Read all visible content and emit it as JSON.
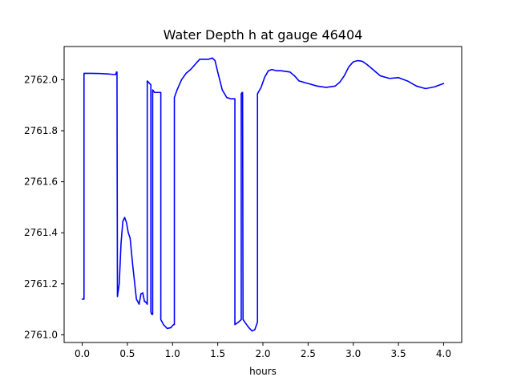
{
  "chart_data": {
    "type": "line",
    "title": "Water Depth h at gauge 46404",
    "xlabel": "hours",
    "ylabel": "",
    "xlim": [
      -0.2,
      4.2
    ],
    "ylim": [
      2760.97,
      2762.13
    ],
    "grid": false,
    "x_ticks": [
      0.0,
      0.5,
      1.0,
      1.5,
      2.0,
      2.5,
      3.0,
      3.5,
      4.0
    ],
    "x_tick_labels": [
      "0.0",
      "0.5",
      "1.0",
      "1.5",
      "2.0",
      "2.5",
      "3.0",
      "3.5",
      "4.0"
    ],
    "y_ticks": [
      2761.0,
      2761.2,
      2761.4,
      2761.6,
      2761.8,
      2762.0
    ],
    "y_tick_labels": [
      "2761.0",
      "2761.2",
      "2761.4",
      "2761.6",
      "2761.8",
      "2762.0"
    ],
    "series": [
      {
        "color": "#0000ff",
        "x": [
          0.0,
          0.02,
          0.02,
          0.1,
          0.2,
          0.3,
          0.37,
          0.38,
          0.385,
          0.39,
          0.41,
          0.43,
          0.45,
          0.47,
          0.49,
          0.51,
          0.53,
          0.56,
          0.6,
          0.63,
          0.65,
          0.67,
          0.69,
          0.7,
          0.72,
          0.72,
          0.76,
          0.76,
          0.77,
          0.78,
          0.78,
          0.8,
          0.86,
          0.87,
          0.87,
          0.9,
          0.94,
          0.98,
          1.01,
          1.02,
          1.02,
          1.05,
          1.1,
          1.15,
          1.2,
          1.25,
          1.3,
          1.35,
          1.4,
          1.44,
          1.47,
          1.5,
          1.55,
          1.6,
          1.65,
          1.69,
          1.69,
          1.73,
          1.76,
          1.76,
          1.77,
          1.775,
          1.78,
          1.78,
          1.8,
          1.84,
          1.88,
          1.91,
          1.94,
          1.94,
          1.98,
          2.02,
          2.06,
          2.1,
          2.15,
          2.2,
          2.3,
          2.35,
          2.4,
          2.5,
          2.6,
          2.7,
          2.8,
          2.85,
          2.9,
          2.95,
          3.0,
          3.05,
          3.1,
          3.15,
          3.2,
          3.3,
          3.4,
          3.5,
          3.6,
          3.7,
          3.8,
          3.9,
          4.0
        ],
        "y": [
          2761.14,
          2761.14,
          2762.025,
          2762.025,
          2762.024,
          2762.022,
          2762.02,
          2762.03,
          2762.03,
          2761.15,
          2761.2,
          2761.36,
          2761.445,
          2761.46,
          2761.44,
          2761.4,
          2761.38,
          2761.27,
          2761.14,
          2761.12,
          2761.16,
          2761.165,
          2761.13,
          2761.13,
          2761.12,
          2761.995,
          2761.98,
          2761.09,
          2761.08,
          2761.08,
          2761.96,
          2761.95,
          2761.95,
          2761.95,
          2761.06,
          2761.04,
          2761.025,
          2761.028,
          2761.04,
          2761.04,
          2761.93,
          2761.96,
          2762.0,
          2762.025,
          2762.04,
          2762.06,
          2762.08,
          2762.08,
          2762.08,
          2762.085,
          2762.075,
          2762.03,
          2761.96,
          2761.93,
          2761.925,
          2761.925,
          2761.04,
          2761.05,
          2761.06,
          2761.945,
          2761.95,
          2761.95,
          2761.06,
          2761.06,
          2761.05,
          2761.03,
          2761.015,
          2761.02,
          2761.05,
          2761.945,
          2761.97,
          2762.01,
          2762.035,
          2762.04,
          2762.035,
          2762.035,
          2762.03,
          2762.015,
          2761.995,
          2761.985,
          2761.975,
          2761.97,
          2761.975,
          2761.99,
          2762.015,
          2762.05,
          2762.07,
          2762.075,
          2762.072,
          2762.06,
          2762.045,
          2762.015,
          2762.005,
          2762.008,
          2761.995,
          2761.975,
          2761.965,
          2761.972,
          2761.985
        ]
      }
    ]
  }
}
